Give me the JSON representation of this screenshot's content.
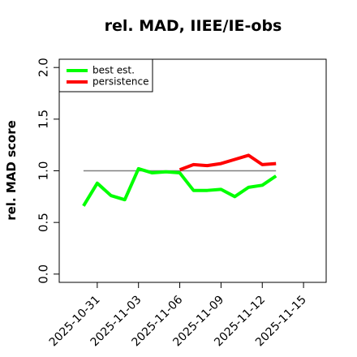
{
  "chart_data": {
    "type": "line",
    "title": "rel. MAD, IIEE/IE-obs",
    "y_label": "rel. MAD score",
    "x": [
      "2025-10-30",
      "2025-10-31",
      "2025-11-01",
      "2025-11-02",
      "2025-11-03",
      "2025-11-04",
      "2025-11-05",
      "2025-11-06",
      "2025-11-07",
      "2025-11-08",
      "2025-11-09",
      "2025-11-10",
      "2025-11-11",
      "2025-11-12",
      "2025-11-13"
    ],
    "series": [
      {
        "name": "best est.",
        "color": "#00ff00",
        "values": [
          0.66,
          0.88,
          0.76,
          0.72,
          1.02,
          0.98,
          0.99,
          0.98,
          0.81,
          0.81,
          0.82,
          0.75,
          0.84,
          0.86,
          0.95
        ]
      },
      {
        "name": "persistence",
        "color": "#ff0000",
        "values": [
          null,
          null,
          null,
          null,
          null,
          null,
          null,
          1.01,
          1.06,
          1.05,
          1.07,
          1.11,
          1.15,
          1.06,
          1.07
        ]
      }
    ],
    "hline": 1,
    "hline_color": "#808080",
    "xlim": [
      "2025-10-28",
      "2025-11-17"
    ],
    "xticks": [
      "2025-10-31",
      "2025-11-03",
      "2025-11-06",
      "2025-11-09",
      "2025-11-12",
      "2025-11-15"
    ],
    "ylim": [
      -0.08,
      2.08
    ],
    "yticks": [
      {
        "value": 0,
        "label": "0.0"
      },
      {
        "value": 0.5,
        "label": "0.5"
      },
      {
        "value": 1,
        "label": "1.0"
      },
      {
        "value": 1.5,
        "label": "1.5"
      },
      {
        "value": 2,
        "label": "2.0"
      }
    ],
    "legend": "top-left"
  }
}
